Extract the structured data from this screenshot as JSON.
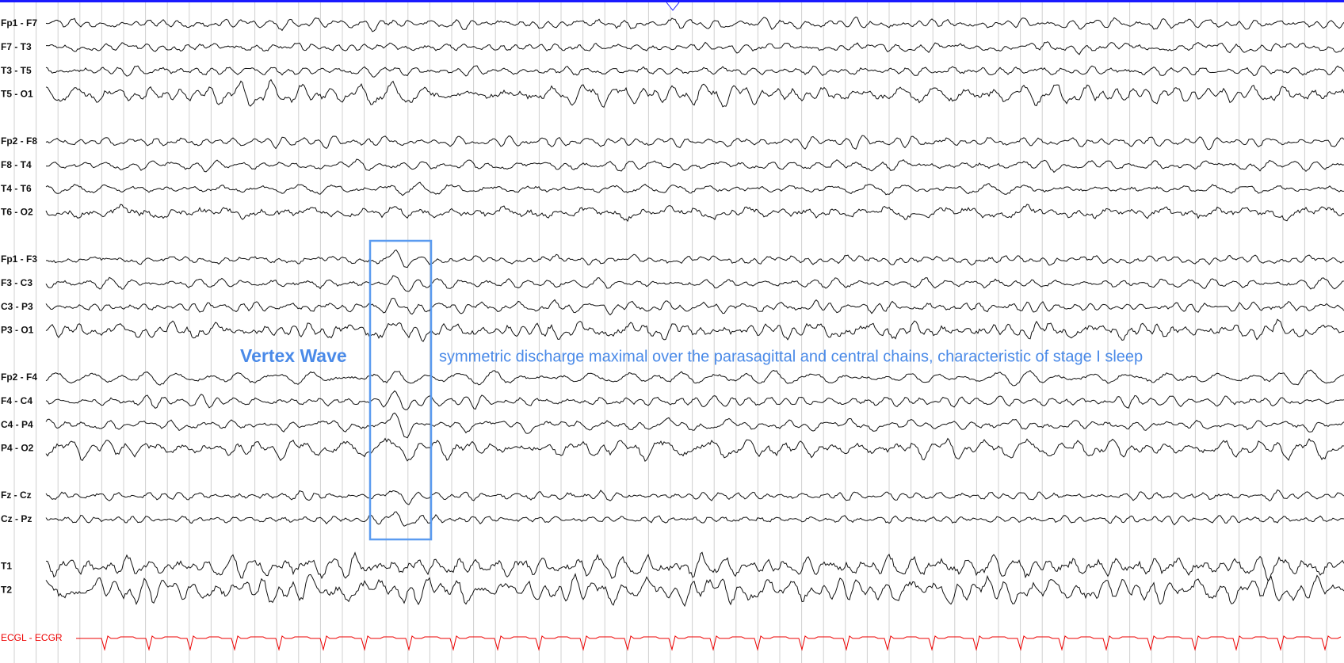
{
  "channels": [
    [
      {
        "label": "Fp1 - F7"
      },
      {
        "label": "F7 - T3"
      },
      {
        "label": "T3 - T5"
      },
      {
        "label": "T5 - O1"
      }
    ],
    [
      {
        "label": "Fp2 - F8"
      },
      {
        "label": "F8 - T4"
      },
      {
        "label": "T4 - T6"
      },
      {
        "label": "T6 - O2"
      }
    ],
    [
      {
        "label": "Fp1 - F3"
      },
      {
        "label": "F3 - C3"
      },
      {
        "label": "C3 - P3"
      },
      {
        "label": "P3 - O1"
      }
    ],
    [
      {
        "label": "Fp2 - F4"
      },
      {
        "label": "F4 - C4"
      },
      {
        "label": "C4 - P4"
      },
      {
        "label": "P4 - O2"
      }
    ],
    [
      {
        "label": "Fz - Cz"
      },
      {
        "label": "Cz - Pz"
      }
    ],
    [
      {
        "label": "T1"
      },
      {
        "label": "T2"
      }
    ]
  ],
  "ecg": {
    "label": "ECGL - ECGR"
  },
  "annotation": {
    "title": "Vertex Wave",
    "text": "symmetric discharge maximal over the parasagittal and central chains, characteristic of stage I sleep"
  }
}
